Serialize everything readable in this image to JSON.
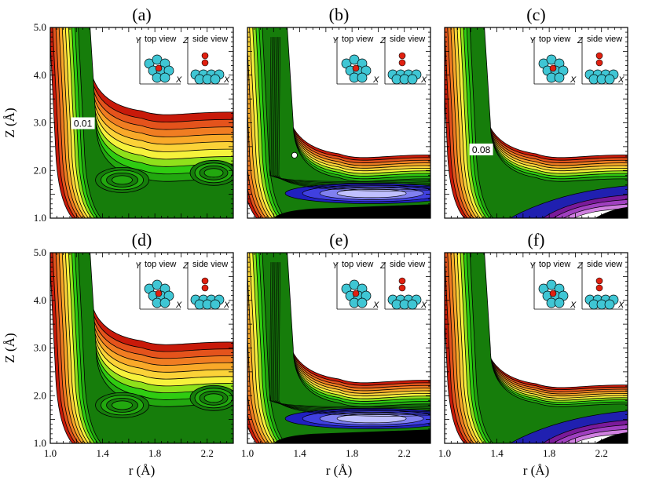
{
  "chart_data": [
    {
      "type": "heatmap",
      "panel": "(a)",
      "xlim": [
        1.0,
        2.4
      ],
      "ylim": [
        1.0,
        5.0
      ],
      "annotation": {
        "text": "0.01",
        "r": 1.25,
        "z": 2.95
      },
      "inset": {
        "top_label": "top view",
        "side_label": "side view",
        "top_axes": [
          "Y",
          "X"
        ],
        "side_axes": [
          "Z",
          "X"
        ]
      },
      "levels": {
        "wall_r": 1.2,
        "plateau_z": 3.0,
        "variant": "green"
      }
    },
    {
      "type": "heatmap",
      "panel": "(b)",
      "xlim": [
        1.0,
        2.4
      ],
      "ylim": [
        1.0,
        5.0
      ],
      "annotation": {
        "marker": "white-dot",
        "r": 1.36,
        "z": 2.32
      },
      "inset": {
        "top_label": "top view",
        "side_label": "side view",
        "top_axes": [
          "Y",
          "X"
        ],
        "side_axes": [
          "Z",
          "X"
        ]
      },
      "levels": {
        "wall_r": 1.1,
        "plateau_z": 2.1,
        "variant": "blue"
      }
    },
    {
      "type": "heatmap",
      "panel": "(c)",
      "xlim": [
        1.0,
        2.4
      ],
      "ylim": [
        1.0,
        5.0
      ],
      "annotation": {
        "text": "0.08",
        "r": 1.28,
        "z": 2.4
      },
      "inset": {
        "top_label": "top view",
        "side_label": "side view",
        "top_axes": [
          "Y",
          "X"
        ],
        "side_axes": [
          "Z",
          "X"
        ]
      },
      "levels": {
        "wall_r": 1.18,
        "plateau_z": 2.1,
        "variant": "purple"
      }
    },
    {
      "type": "heatmap",
      "panel": "(d)",
      "xlim": [
        1.0,
        2.4
      ],
      "ylim": [
        1.0,
        5.0
      ],
      "inset": {
        "top_label": "top view",
        "side_label": "side view",
        "top_axes": [
          "Y",
          "X"
        ],
        "side_axes": [
          "Z",
          "X"
        ]
      },
      "levels": {
        "wall_r": 1.2,
        "plateau_z": 2.9,
        "variant": "green"
      }
    },
    {
      "type": "heatmap",
      "panel": "(e)",
      "xlim": [
        1.0,
        2.4
      ],
      "ylim": [
        1.0,
        5.0
      ],
      "inset": {
        "top_label": "top view",
        "side_label": "side view",
        "top_axes": [
          "Y",
          "X"
        ],
        "side_axes": [
          "Z",
          "X"
        ]
      },
      "levels": {
        "wall_r": 1.1,
        "plateau_z": 2.1,
        "variant": "blue"
      }
    },
    {
      "type": "heatmap",
      "panel": "(f)",
      "xlim": [
        1.0,
        2.4
      ],
      "ylim": [
        1.0,
        5.0
      ],
      "inset": {
        "top_label": "top view",
        "side_label": "side view",
        "top_axes": [
          "Y",
          "X"
        ],
        "side_axes": [
          "Z",
          "X"
        ]
      },
      "levels": {
        "wall_r": 1.18,
        "plateau_z": 2.0,
        "variant": "purple"
      }
    }
  ],
  "axes": {
    "xlabel": "r (Å)",
    "ylabel": "Z (Å)",
    "x_ticks": [
      "1.0",
      "1.4",
      "1.8",
      "2.2"
    ],
    "y_ticks": [
      "1.0",
      "2.0",
      "3.0",
      "4.0",
      "5.0"
    ]
  },
  "colors": {
    "contour_line": "#000000",
    "palette": [
      "#c81a0a",
      "#e4531c",
      "#f07d22",
      "#f9a929",
      "#fbd238",
      "#f6f23c",
      "#8fe11b",
      "#2fcc11",
      "#22a80f",
      "#167d0b"
    ],
    "blue_well": [
      "#2020c0",
      "#4040e0",
      "#8080f0",
      "#c0c0ff"
    ],
    "purple_well": [
      "#7a1a9a",
      "#a040c0",
      "#d080e0",
      "#ffffff"
    ],
    "atom_cyan": "#3fc6d4",
    "atom_red": "#e02010"
  }
}
